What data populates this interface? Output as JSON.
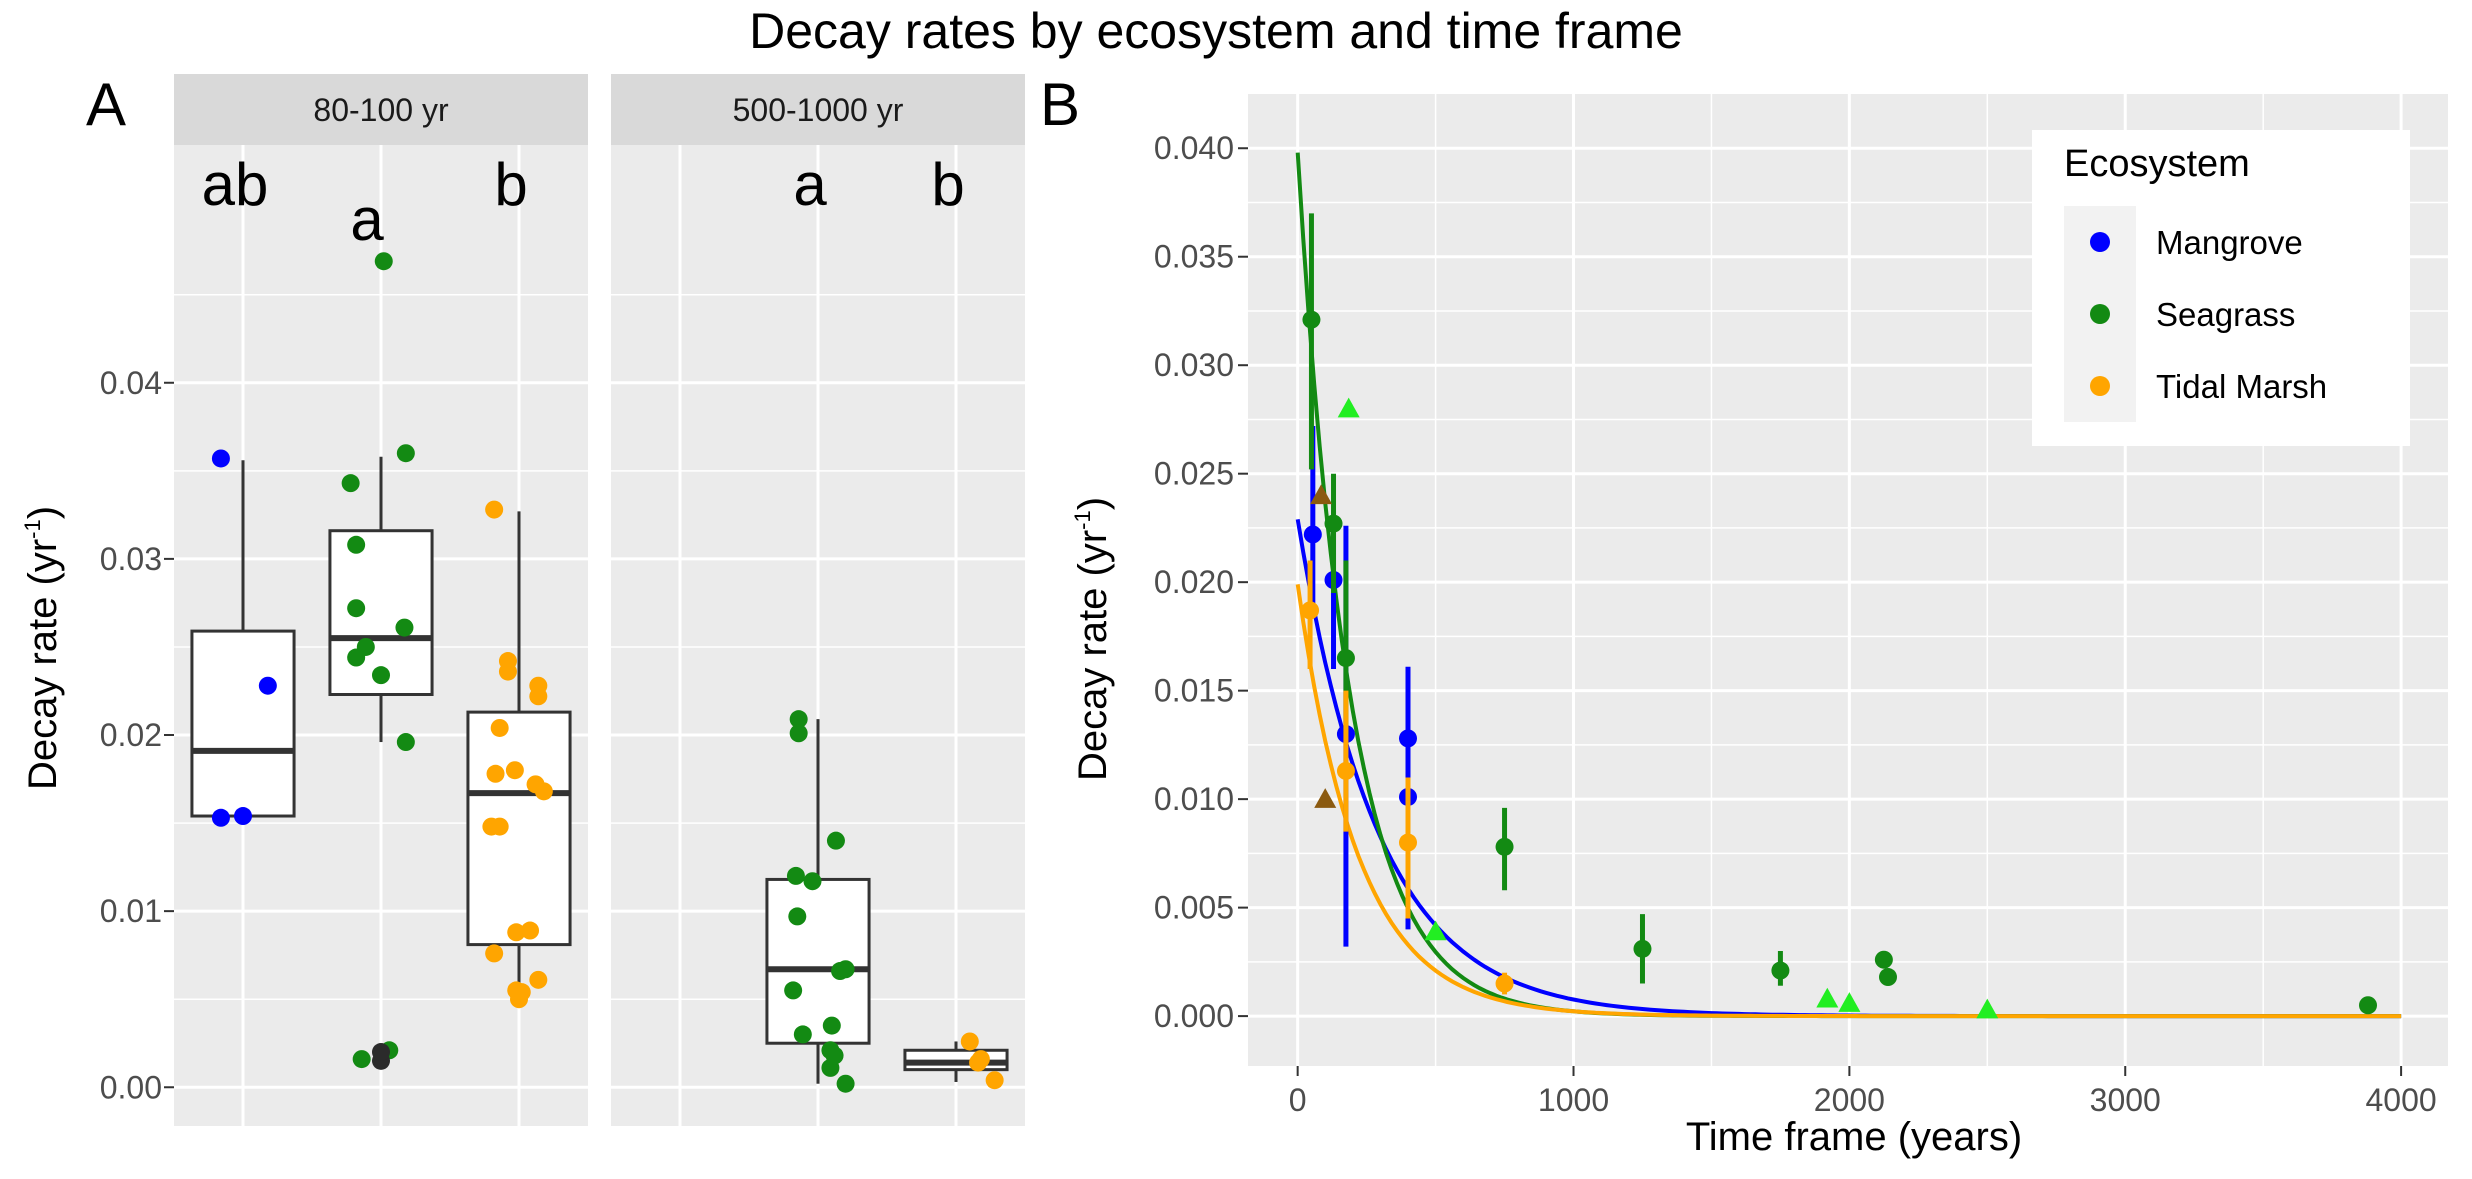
{
  "title": "Decay rates by ecosystem and time frame",
  "colors": {
    "Mangrove": "#0000ff",
    "Seagrass": "#138a13",
    "Tidal Marsh": "#ffa500",
    "dark_points": "#2b2b2b",
    "triangle_brown": "#8b5a10",
    "triangle_lime": "#22ee22",
    "panel_bg": "#ebebeb",
    "strip_bg": "#d9d9d9",
    "grid": "#ffffff"
  },
  "chart_data": [
    {
      "tag": "A",
      "type": "box",
      "ylabel": "Decay rate (yr",
      "ylabel_sup": "-1",
      "ylabel_close": ")",
      "ylim": [
        -0.0022,
        0.0535
      ],
      "yticks": [
        0.0,
        0.01,
        0.02,
        0.03,
        0.04
      ],
      "ytick_labels": [
        "0.00",
        "0.01",
        "0.02",
        "0.03",
        "0.04"
      ],
      "facets": [
        {
          "strip": "80-100 yr",
          "boxes": [
            {
              "letter": "ab",
              "color": "Mangrove",
              "q1": 0.0154,
              "median": 0.0191,
              "q3": 0.0259,
              "whisker_low": 0.0154,
              "whisker_high": 0.0356,
              "points": [
                [
                  -0.16,
                  0.0357
                ],
                [
                  0.18,
                  0.0228
                ],
                [
                  -0.16,
                  0.0153
                ],
                [
                  0.0,
                  0.0154
                ]
              ]
            },
            {
              "letter": "a",
              "color": "Seagrass",
              "q1": 0.0223,
              "median": 0.0255,
              "q3": 0.0316,
              "whisker_low": 0.0196,
              "whisker_high": 0.0358,
              "points": [
                [
                  0.02,
                  0.0469
                ],
                [
                  -0.22,
                  0.0343
                ],
                [
                  0.18,
                  0.036
                ],
                [
                  -0.18,
                  0.0308
                ],
                [
                  -0.18,
                  0.0272
                ],
                [
                  0.17,
                  0.0261
                ],
                [
                  -0.11,
                  0.025
                ],
                [
                  -0.18,
                  0.0244
                ],
                [
                  0.0,
                  0.0234
                ],
                [
                  0.18,
                  0.0196
                ],
                [
                  -0.14,
                  0.0016
                ],
                [
                  0.06,
                  0.0021
                ]
              ],
              "dark_points": [
                [
                  0.0,
                  0.0015
                ],
                [
                  0.0,
                  0.002
                ]
              ]
            },
            {
              "letter": "b",
              "color": "Tidal Marsh",
              "q1": 0.0081,
              "median": 0.0167,
              "q3": 0.0213,
              "whisker_low": 0.0049,
              "whisker_high": 0.0327,
              "points": [
                [
                  -0.18,
                  0.0328
                ],
                [
                  -0.08,
                  0.0242
                ],
                [
                  -0.08,
                  0.0236
                ],
                [
                  0.14,
                  0.0228
                ],
                [
                  0.14,
                  0.0222
                ],
                [
                  -0.14,
                  0.0204
                ],
                [
                  -0.17,
                  0.0178
                ],
                [
                  -0.03,
                  0.018
                ],
                [
                  0.12,
                  0.0172
                ],
                [
                  0.18,
                  0.0168
                ],
                [
                  -0.2,
                  0.0148
                ],
                [
                  -0.14,
                  0.0148
                ],
                [
                  -0.02,
                  0.0088
                ],
                [
                  0.08,
                  0.0089
                ],
                [
                  -0.18,
                  0.0076
                ],
                [
                  0.14,
                  0.0061
                ],
                [
                  -0.02,
                  0.0055
                ],
                [
                  0.0,
                  0.005
                ],
                [
                  0.02,
                  0.0054
                ]
              ]
            }
          ]
        },
        {
          "strip": "500-1000 yr",
          "boxes": [
            {
              "letter": "",
              "color": "Mangrove",
              "empty": true
            },
            {
              "letter": "a",
              "color": "Seagrass",
              "q1": 0.0025,
              "median": 0.0067,
              "q3": 0.0118,
              "whisker_low": 0.0002,
              "whisker_high": 0.0209,
              "points": [
                [
                  -0.14,
                  0.0209
                ],
                [
                  -0.14,
                  0.0201
                ],
                [
                  -0.16,
                  0.012
                ],
                [
                  0.13,
                  0.014
                ],
                [
                  -0.04,
                  0.0117
                ],
                [
                  -0.15,
                  0.0097
                ],
                [
                  0.16,
                  0.0066
                ],
                [
                  0.2,
                  0.0067
                ],
                [
                  -0.18,
                  0.0055
                ],
                [
                  0.1,
                  0.0035
                ],
                [
                  -0.11,
                  0.003
                ],
                [
                  0.09,
                  0.0021
                ],
                [
                  0.09,
                  0.0011
                ],
                [
                  0.12,
                  0.0018
                ],
                [
                  0.2,
                  0.0002
                ]
              ]
            },
            {
              "letter": "b",
              "color": "Tidal Marsh",
              "q1": 0.001,
              "median": 0.0014,
              "q3": 0.0021,
              "whisker_low": 0.0003,
              "whisker_high": 0.0026,
              "points": [
                [
                  0.1,
                  0.0026
                ],
                [
                  0.18,
                  0.0016
                ],
                [
                  0.16,
                  0.0014
                ],
                [
                  0.28,
                  0.0004
                ]
              ]
            }
          ]
        }
      ]
    },
    {
      "tag": "B",
      "type": "scatter",
      "xlabel": "Time frame (years)",
      "ylabel": "Decay rate (yr",
      "ylabel_sup": "-1",
      "ylabel_close": ")",
      "xlim": [
        -180,
        4170
      ],
      "ylim": [
        -0.0023,
        0.0425
      ],
      "xticks": [
        0,
        1000,
        2000,
        3000,
        4000
      ],
      "xtick_labels": [
        "0",
        "1000",
        "2000",
        "3000",
        "4000"
      ],
      "yticks": [
        0.0,
        0.005,
        0.01,
        0.015,
        0.02,
        0.025,
        0.03,
        0.035,
        0.04
      ],
      "ytick_labels": [
        "0.000",
        "0.005",
        "0.010",
        "0.015",
        "0.020",
        "0.025",
        "0.030",
        "0.035",
        "0.040"
      ],
      "legend": {
        "title": "Ecosystem",
        "position": "top-right",
        "entries": [
          "Mangrove",
          "Seagrass",
          "Tidal Marsh"
        ]
      },
      "series": [
        {
          "name": "Mangrove",
          "color": "Mangrove",
          "points": [
            [
              55,
              0.0222,
              0.0185,
              0.0272
            ],
            [
              130,
              0.0201,
              0.016,
              0.0233
            ],
            [
              175,
              0.013,
              0.0032,
              0.0226
            ],
            [
              400,
              0.0128,
              0.0095,
              0.0161
            ],
            [
              400,
              0.0101,
              0.004,
              0.012
            ]
          ],
          "curve": {
            "a": 0.0229,
            "k": 0.0034
          }
        },
        {
          "name": "Seagrass",
          "color": "Seagrass",
          "points": [
            [
              50,
              0.0321,
              0.0252,
              0.037
            ],
            [
              130,
              0.0227,
              0.0195,
              0.025
            ],
            [
              175,
              0.0165,
              0.013,
              0.021
            ],
            [
              750,
              0.0078,
              0.0058,
              0.0096
            ],
            [
              1250,
              0.0031,
              0.0015,
              0.0047
            ],
            [
              1750,
              0.0021,
              0.0014,
              0.003
            ],
            [
              2125,
              0.0026,
              0.0026,
              0.0026
            ],
            [
              2140,
              0.0018,
              0.0018,
              0.0018
            ],
            [
              3880,
              0.0005,
              0.0005,
              0.0005
            ]
          ],
          "curve": {
            "a": 0.0398,
            "k": 0.0052
          }
        },
        {
          "name": "Tidal Marsh",
          "color": "Tidal Marsh",
          "points": [
            [
              45,
              0.0187,
              0.016,
              0.021
            ],
            [
              175,
              0.0113,
              0.0085,
              0.015
            ],
            [
              400,
              0.008,
              0.0045,
              0.011
            ],
            [
              750,
              0.0015,
              0.001,
              0.002
            ]
          ],
          "curve": {
            "a": 0.0199,
            "k": 0.0045
          }
        }
      ],
      "triangles": [
        {
          "color": "triangle_brown",
          "x": 85,
          "y": 0.024
        },
        {
          "color": "triangle_brown",
          "x": 100,
          "y": 0.01
        },
        {
          "color": "triangle_lime",
          "x": 185,
          "y": 0.028
        },
        {
          "color": "triangle_lime",
          "x": 500,
          "y": 0.0039
        },
        {
          "color": "triangle_lime",
          "x": 1920,
          "y": 0.0008
        },
        {
          "color": "triangle_lime",
          "x": 2000,
          "y": 0.0006
        },
        {
          "color": "triangle_lime",
          "x": 2500,
          "y": 0.0003
        }
      ]
    }
  ]
}
